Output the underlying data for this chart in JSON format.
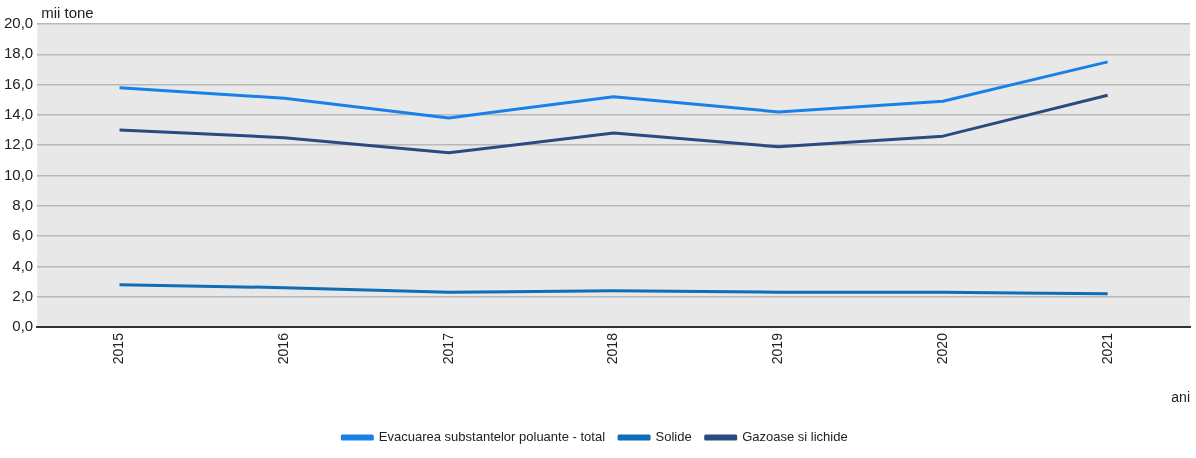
{
  "chart_data": {
    "type": "line",
    "xlabel": "ani",
    "ylabel": "mii tone",
    "categories": [
      "2015",
      "2016",
      "2017",
      "2018",
      "2019",
      "2020",
      "2021"
    ],
    "series": [
      {
        "name": "Evacuarea substantelor poluante - total",
        "color": "#1a80e8",
        "values": [
          15.8,
          15.1,
          13.8,
          15.2,
          14.2,
          14.9,
          17.5
        ]
      },
      {
        "name": "Solide",
        "color": "#0e6db5",
        "values": [
          2.8,
          2.6,
          2.3,
          2.4,
          2.3,
          2.3,
          2.2
        ]
      },
      {
        "name": "Gazoase si lichide",
        "color": "#2a4a80",
        "values": [
          13.0,
          12.5,
          11.5,
          12.8,
          11.9,
          12.6,
          15.3
        ]
      }
    ],
    "ylim": [
      0,
      20
    ],
    "yticks": [
      {
        "value": 0,
        "label": "0,0"
      },
      {
        "value": 2,
        "label": "2,0"
      },
      {
        "value": 4,
        "label": "4,0"
      },
      {
        "value": 6,
        "label": "6,0"
      },
      {
        "value": 8,
        "label": "8,0"
      },
      {
        "value": 10,
        "label": "10,0"
      },
      {
        "value": 12,
        "label": "12,0"
      },
      {
        "value": 14,
        "label": "14,0"
      },
      {
        "value": 16,
        "label": "16,0"
      },
      {
        "value": 18,
        "label": "18,0"
      },
      {
        "value": 20,
        "label": "20,0"
      }
    ],
    "grid": "y",
    "legend": "bottom",
    "marker": "none",
    "line_style": "solid"
  }
}
